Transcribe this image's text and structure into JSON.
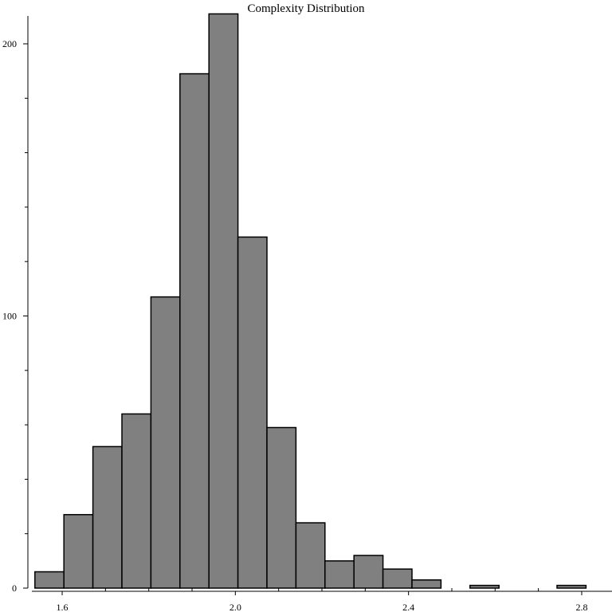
{
  "chart_data": {
    "type": "bar",
    "title": "Complexity Distribution",
    "xlabel": "",
    "ylabel": "",
    "xlim": [
      1.53,
      2.87
    ],
    "ylim": [
      0,
      210
    ],
    "bin_width": 0.067,
    "bins": [
      {
        "x0": 1.537,
        "x1": 1.604,
        "count": 6
      },
      {
        "x0": 1.604,
        "x1": 1.671,
        "count": 27
      },
      {
        "x0": 1.671,
        "x1": 1.738,
        "count": 52
      },
      {
        "x0": 1.738,
        "x1": 1.805,
        "count": 64
      },
      {
        "x0": 1.805,
        "x1": 1.872,
        "count": 107
      },
      {
        "x0": 1.872,
        "x1": 1.939,
        "count": 189
      },
      {
        "x0": 1.939,
        "x1": 2.006,
        "count": 211
      },
      {
        "x0": 2.006,
        "x1": 2.073,
        "count": 129
      },
      {
        "x0": 2.073,
        "x1": 2.14,
        "count": 59
      },
      {
        "x0": 2.14,
        "x1": 2.207,
        "count": 24
      },
      {
        "x0": 2.207,
        "x1": 2.274,
        "count": 10
      },
      {
        "x0": 2.274,
        "x1": 2.341,
        "count": 12
      },
      {
        "x0": 2.341,
        "x1": 2.408,
        "count": 7
      },
      {
        "x0": 2.408,
        "x1": 2.475,
        "count": 3
      },
      {
        "x0": 2.475,
        "x1": 2.542,
        "count": 0
      },
      {
        "x0": 2.542,
        "x1": 2.609,
        "count": 1
      },
      {
        "x0": 2.609,
        "x1": 2.676,
        "count": 0
      },
      {
        "x0": 2.676,
        "x1": 2.743,
        "count": 0
      },
      {
        "x0": 2.743,
        "x1": 2.81,
        "count": 1
      }
    ],
    "x_ticks": {
      "major": [
        1.6,
        2.0,
        2.4,
        2.8
      ],
      "labels": [
        "1.6",
        "2.0",
        "2.4",
        "2.8"
      ],
      "minor_step": 0.1
    },
    "y_ticks": {
      "major": [
        0,
        100,
        200
      ],
      "labels": [
        "0",
        "100",
        "200"
      ],
      "minor_step": 20
    },
    "grid": false,
    "legend": "none",
    "colors": {
      "bar_fill": "#808080",
      "bar_stroke": "#000000",
      "axis": "#000000",
      "background": "#ffffff"
    }
  }
}
